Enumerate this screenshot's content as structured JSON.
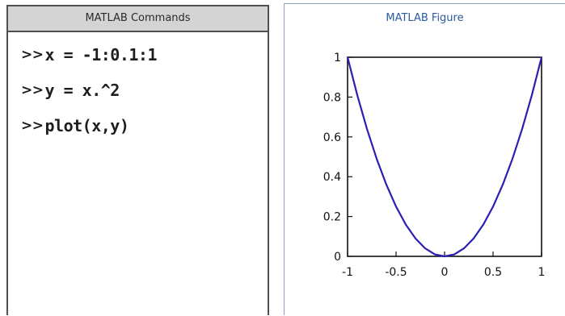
{
  "commands_window": {
    "title": "MATLAB Commands",
    "prompt": ">>",
    "lines": [
      "x = -1:0.1:1",
      "y = x.^2",
      "plot(x,y)"
    ]
  },
  "figure_window": {
    "title": "MATLAB Figure"
  },
  "colors": {
    "line": "#2a1fb4",
    "title_text": "#2a5a9e",
    "titlebar_bg": "#d4d4d4"
  },
  "chart_data": {
    "type": "line",
    "title": "",
    "xlabel": "",
    "ylabel": "",
    "xlim": [
      -1,
      1
    ],
    "ylim": [
      0,
      1
    ],
    "xticks": [
      "-1",
      "-0.5",
      "0",
      "0.5",
      "1"
    ],
    "yticks": [
      "0",
      "0.2",
      "0.4",
      "0.6",
      "0.8",
      "1"
    ],
    "grid": false,
    "series": [
      {
        "x": [
          -1,
          -0.9,
          -0.8,
          -0.7,
          -0.6,
          -0.5,
          -0.4,
          -0.3,
          -0.2,
          -0.1,
          0,
          0.1,
          0.2,
          0.3,
          0.4,
          0.5,
          0.6,
          0.7,
          0.8,
          0.9,
          1
        ],
        "y": [
          1,
          0.81,
          0.64,
          0.49,
          0.36,
          0.25,
          0.16,
          0.09,
          0.04,
          0.01,
          0,
          0.01,
          0.04,
          0.09,
          0.16,
          0.25,
          0.36,
          0.49,
          0.64,
          0.81,
          1
        ]
      }
    ]
  }
}
